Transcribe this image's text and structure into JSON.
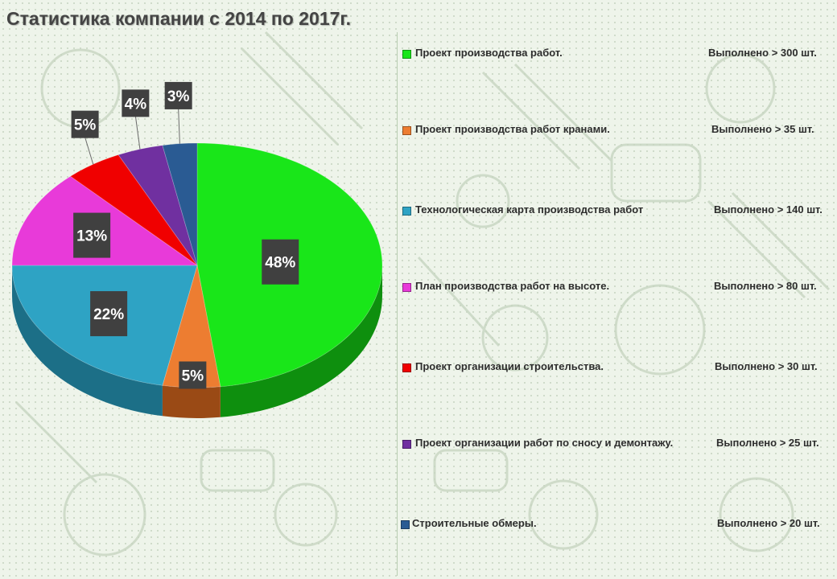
{
  "title": "Статистика компании с 2014 по 2017г.",
  "chart_data": {
    "type": "pie",
    "title": "Статистика компании с 2014 по 2017г.",
    "series": [
      {
        "name": "Проект производства работ.",
        "value": 48,
        "label": "48%",
        "color": "#19e619",
        "side_color": "#0e8f0e",
        "count_text": "Выполнено > 300  шт."
      },
      {
        "name": "Проект производства работ кранами.",
        "value": 5,
        "label": "5%",
        "color": "#ed7d31",
        "side_color": "#9a4a15",
        "count_text": "Выполнено > 35  шт."
      },
      {
        "name": "Технологическая карта производства работ",
        "value": 22,
        "label": "22%",
        "color": "#2ea3c4",
        "side_color": "#1c6f87",
        "count_text": "Выполнено > 140  шт."
      },
      {
        "name": "План производства работ на высоте.",
        "value": 13,
        "label": "13%",
        "color": "#e83ad9",
        "side_color": "#a1209a",
        "count_text": "Выполнено > 80  шт."
      },
      {
        "name": "Проект организации строительства.",
        "value": 5,
        "label": "5%",
        "color": "#f00000",
        "side_color": "#a00000",
        "count_text": "Выполнено > 30  шт."
      },
      {
        "name": "Проект организации работ по сносу и демонтажу.",
        "value": 4,
        "label": "4%",
        "color": "#7030a0",
        "side_color": "#4a1f6b",
        "count_text": "Выполнено > 25  шт."
      },
      {
        "name": "Строительные обмеры.",
        "value": 3,
        "label": "3%",
        "color": "#2a5b93",
        "side_color": "#1a3a60",
        "count_text": "Выполнено > 20  шт."
      }
    ],
    "legend_placement": "right"
  }
}
